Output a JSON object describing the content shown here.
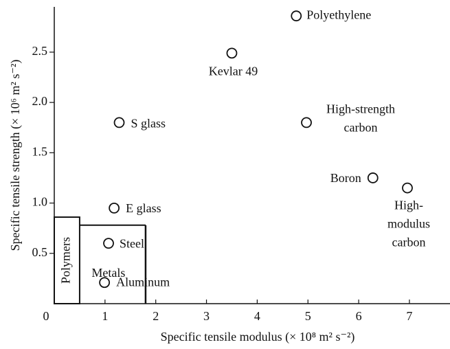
{
  "chart_data": {
    "type": "scatter",
    "x_label": "Specific tensile modulus (× 10⁸ m² s⁻²)",
    "y_label": "Specific tensile strength (× 10⁶ m² s⁻²)",
    "xlim": [
      0,
      7.8
    ],
    "ylim": [
      0,
      2.95
    ],
    "xticks": [
      0,
      1,
      2,
      3,
      4,
      5,
      6,
      7
    ],
    "yticks": [
      0.5,
      {
        "value": 1,
        "label": "1.0"
      },
      1.5,
      {
        "value": 2,
        "label": "2.0"
      },
      2.5
    ],
    "color": "#111111",
    "points": [
      {
        "label": [
          "Polyethylene"
        ],
        "x": 4.77,
        "y": 2.86
      },
      {
        "label": [
          "Kevlar 49"
        ],
        "x": 3.5,
        "y": 2.49
      },
      {
        "label": [
          "S glass"
        ],
        "x": 1.28,
        "y": 1.8
      },
      {
        "label": [
          "High-strength",
          "carbon"
        ],
        "x": 4.97,
        "y": 1.8
      },
      {
        "label": [
          "Boron"
        ],
        "x": 6.28,
        "y": 1.25
      },
      {
        "label": [
          "High-",
          "modulus",
          "carbon"
        ],
        "x": 6.96,
        "y": 1.15
      },
      {
        "label": [
          "E glass"
        ],
        "x": 1.18,
        "y": 0.95
      },
      {
        "label": [
          "Steel"
        ],
        "x": 1.07,
        "y": 0.6
      },
      {
        "label": [
          "Aluminum"
        ],
        "x": 0.99,
        "y": 0.21
      }
    ],
    "regions": [
      {
        "label": "Polymers",
        "x": [
          0,
          0.5
        ],
        "y": [
          0,
          0.86
        ]
      },
      {
        "label": "Metals",
        "x": [
          0.5,
          1.8
        ],
        "y": [
          0,
          0.78
        ]
      }
    ]
  }
}
